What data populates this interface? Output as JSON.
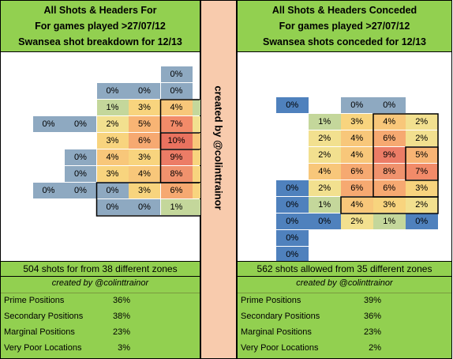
{
  "divider_credit": "created by @colinttrainor",
  "chart_data": [
    {
      "type": "heatmap",
      "title": [
        "All Shots & Headers For",
        "For games played >27/07/12",
        "Swansea shot breakdown for 12/13"
      ],
      "summary": "504 shots for from 38 different zones",
      "credit": "created by @colinttrainor",
      "stats": [
        {
          "label": "Prime Positions",
          "value": "36%"
        },
        {
          "label": "Secondary Positions",
          "value": "38%"
        },
        {
          "label": "Marginal Positions",
          "value": "23%"
        },
        {
          "label": "Very Poor Locations",
          "value": "3%"
        }
      ],
      "cells": [
        {
          "row": 0,
          "col": 5,
          "value": "0%",
          "level": 0
        },
        {
          "row": 1,
          "col": 3,
          "value": "0%",
          "level": 0
        },
        {
          "row": 1,
          "col": 4,
          "value": "0%",
          "level": 0
        },
        {
          "row": 1,
          "col": 5,
          "value": "0%",
          "level": 0
        },
        {
          "row": 2,
          "col": 3,
          "value": "1%",
          "level": 1
        },
        {
          "row": 2,
          "col": 4,
          "value": "3%",
          "level": 3
        },
        {
          "row": 2,
          "col": 5,
          "value": "4%",
          "level": 4
        },
        {
          "row": 2,
          "col": 6,
          "value": "1%",
          "level": 1
        },
        {
          "row": 3,
          "col": 1,
          "value": "0%",
          "level": 0
        },
        {
          "row": 3,
          "col": 2,
          "value": "0%",
          "level": 0
        },
        {
          "row": 3,
          "col": 3,
          "value": "2%",
          "level": 2
        },
        {
          "row": 3,
          "col": 4,
          "value": "5%",
          "level": 5
        },
        {
          "row": 3,
          "col": 5,
          "value": "7%",
          "level": 7
        },
        {
          "row": 3,
          "col": 6,
          "value": "2%",
          "level": 2
        },
        {
          "row": 4,
          "col": 3,
          "value": "3%",
          "level": 3
        },
        {
          "row": 4,
          "col": 4,
          "value": "6%",
          "level": 6
        },
        {
          "row": 4,
          "col": 5,
          "value": "10%",
          "level": 10
        },
        {
          "row": 4,
          "col": 6,
          "value": "4%",
          "level": 4
        },
        {
          "row": 5,
          "col": 2,
          "value": "0%",
          "level": 0
        },
        {
          "row": 5,
          "col": 3,
          "value": "4%",
          "level": 4
        },
        {
          "row": 5,
          "col": 4,
          "value": "3%",
          "level": 3
        },
        {
          "row": 5,
          "col": 5,
          "value": "9%",
          "level": 9
        },
        {
          "row": 5,
          "col": 6,
          "value": "3%",
          "level": 3
        },
        {
          "row": 6,
          "col": 2,
          "value": "0%",
          "level": 0
        },
        {
          "row": 6,
          "col": 3,
          "value": "3%",
          "level": 3
        },
        {
          "row": 6,
          "col": 4,
          "value": "4%",
          "level": 4
        },
        {
          "row": 6,
          "col": 5,
          "value": "8%",
          "level": 8
        },
        {
          "row": 6,
          "col": 6,
          "value": "3%",
          "level": 3
        },
        {
          "row": 7,
          "col": 1,
          "value": "0%",
          "level": 0
        },
        {
          "row": 7,
          "col": 2,
          "value": "0%",
          "level": 0
        },
        {
          "row": 7,
          "col": 3,
          "value": "0%",
          "level": 0
        },
        {
          "row": 7,
          "col": 4,
          "value": "3%",
          "level": 3
        },
        {
          "row": 7,
          "col": 5,
          "value": "6%",
          "level": 6
        },
        {
          "row": 7,
          "col": 6,
          "value": "3%",
          "level": 3
        },
        {
          "row": 8,
          "col": 3,
          "value": "0%",
          "level": 0
        },
        {
          "row": 8,
          "col": 4,
          "value": "0%",
          "level": 0
        },
        {
          "row": 8,
          "col": 5,
          "value": "1%",
          "level": 1
        },
        {
          "row": 8,
          "col": 6,
          "value": "1%",
          "level": 1
        }
      ]
    },
    {
      "type": "heatmap",
      "title": [
        "All Shots & Headers Conceded",
        "For games played >27/07/12",
        "Swansea shots conceded for 12/13"
      ],
      "summary": "562 shots allowed from 35 different zones",
      "credit": "created by @colinttrainor",
      "stats": [
        {
          "label": "Prime Positions",
          "value": "39%"
        },
        {
          "label": "Secondary Positions",
          "value": "36%"
        },
        {
          "label": "Marginal Positions",
          "value": "23%"
        },
        {
          "label": "Very Poor Locations",
          "value": "2%"
        }
      ],
      "cells": [
        {
          "row": 1,
          "col": 1,
          "value": "0%",
          "level": -1
        },
        {
          "row": 1,
          "col": 3,
          "value": "0%",
          "level": 0
        },
        {
          "row": 1,
          "col": 4,
          "value": "0%",
          "level": 0
        },
        {
          "row": 2,
          "col": 2,
          "value": "1%",
          "level": 1
        },
        {
          "row": 2,
          "col": 3,
          "value": "3%",
          "level": 3
        },
        {
          "row": 2,
          "col": 4,
          "value": "4%",
          "level": 4
        },
        {
          "row": 2,
          "col": 5,
          "value": "2%",
          "level": 2
        },
        {
          "row": 3,
          "col": 2,
          "value": "2%",
          "level": 2
        },
        {
          "row": 3,
          "col": 3,
          "value": "4%",
          "level": 4
        },
        {
          "row": 3,
          "col": 4,
          "value": "6%",
          "level": 6
        },
        {
          "row": 3,
          "col": 5,
          "value": "2%",
          "level": 2
        },
        {
          "row": 4,
          "col": 2,
          "value": "2%",
          "level": 2
        },
        {
          "row": 4,
          "col": 3,
          "value": "4%",
          "level": 4
        },
        {
          "row": 4,
          "col": 4,
          "value": "9%",
          "level": 9
        },
        {
          "row": 4,
          "col": 5,
          "value": "5%",
          "level": 5
        },
        {
          "row": 5,
          "col": 2,
          "value": "4%",
          "level": 4
        },
        {
          "row": 5,
          "col": 3,
          "value": "6%",
          "level": 6
        },
        {
          "row": 5,
          "col": 4,
          "value": "8%",
          "level": 8
        },
        {
          "row": 5,
          "col": 5,
          "value": "7%",
          "level": 7
        },
        {
          "row": 6,
          "col": 1,
          "value": "0%",
          "level": -1
        },
        {
          "row": 6,
          "col": 2,
          "value": "2%",
          "level": 2
        },
        {
          "row": 6,
          "col": 3,
          "value": "6%",
          "level": 6
        },
        {
          "row": 6,
          "col": 4,
          "value": "6%",
          "level": 6
        },
        {
          "row": 6,
          "col": 5,
          "value": "3%",
          "level": 3
        },
        {
          "row": 7,
          "col": 1,
          "value": "0%",
          "level": -1
        },
        {
          "row": 7,
          "col": 2,
          "value": "1%",
          "level": 1
        },
        {
          "row": 7,
          "col": 3,
          "value": "4%",
          "level": 4
        },
        {
          "row": 7,
          "col": 4,
          "value": "3%",
          "level": 3
        },
        {
          "row": 7,
          "col": 5,
          "value": "2%",
          "level": 2
        },
        {
          "row": 8,
          "col": 1,
          "value": "0%",
          "level": -1
        },
        {
          "row": 8,
          "col": 2,
          "value": "0%",
          "level": -1
        },
        {
          "row": 8,
          "col": 3,
          "value": "2%",
          "level": 2
        },
        {
          "row": 8,
          "col": 4,
          "value": "1%",
          "level": 1
        },
        {
          "row": 8,
          "col": 5,
          "value": "0%",
          "level": -1
        },
        {
          "row": 9,
          "col": 1,
          "value": "0%",
          "level": -1
        },
        {
          "row": 10,
          "col": 1,
          "value": "0%",
          "level": -1
        }
      ]
    }
  ],
  "colors": {
    "header_green": "#92d050",
    "divider_peach": "#f8cbad",
    "cold_blue": "#4f81bd",
    "empty_grey": "#8ea9c1"
  }
}
